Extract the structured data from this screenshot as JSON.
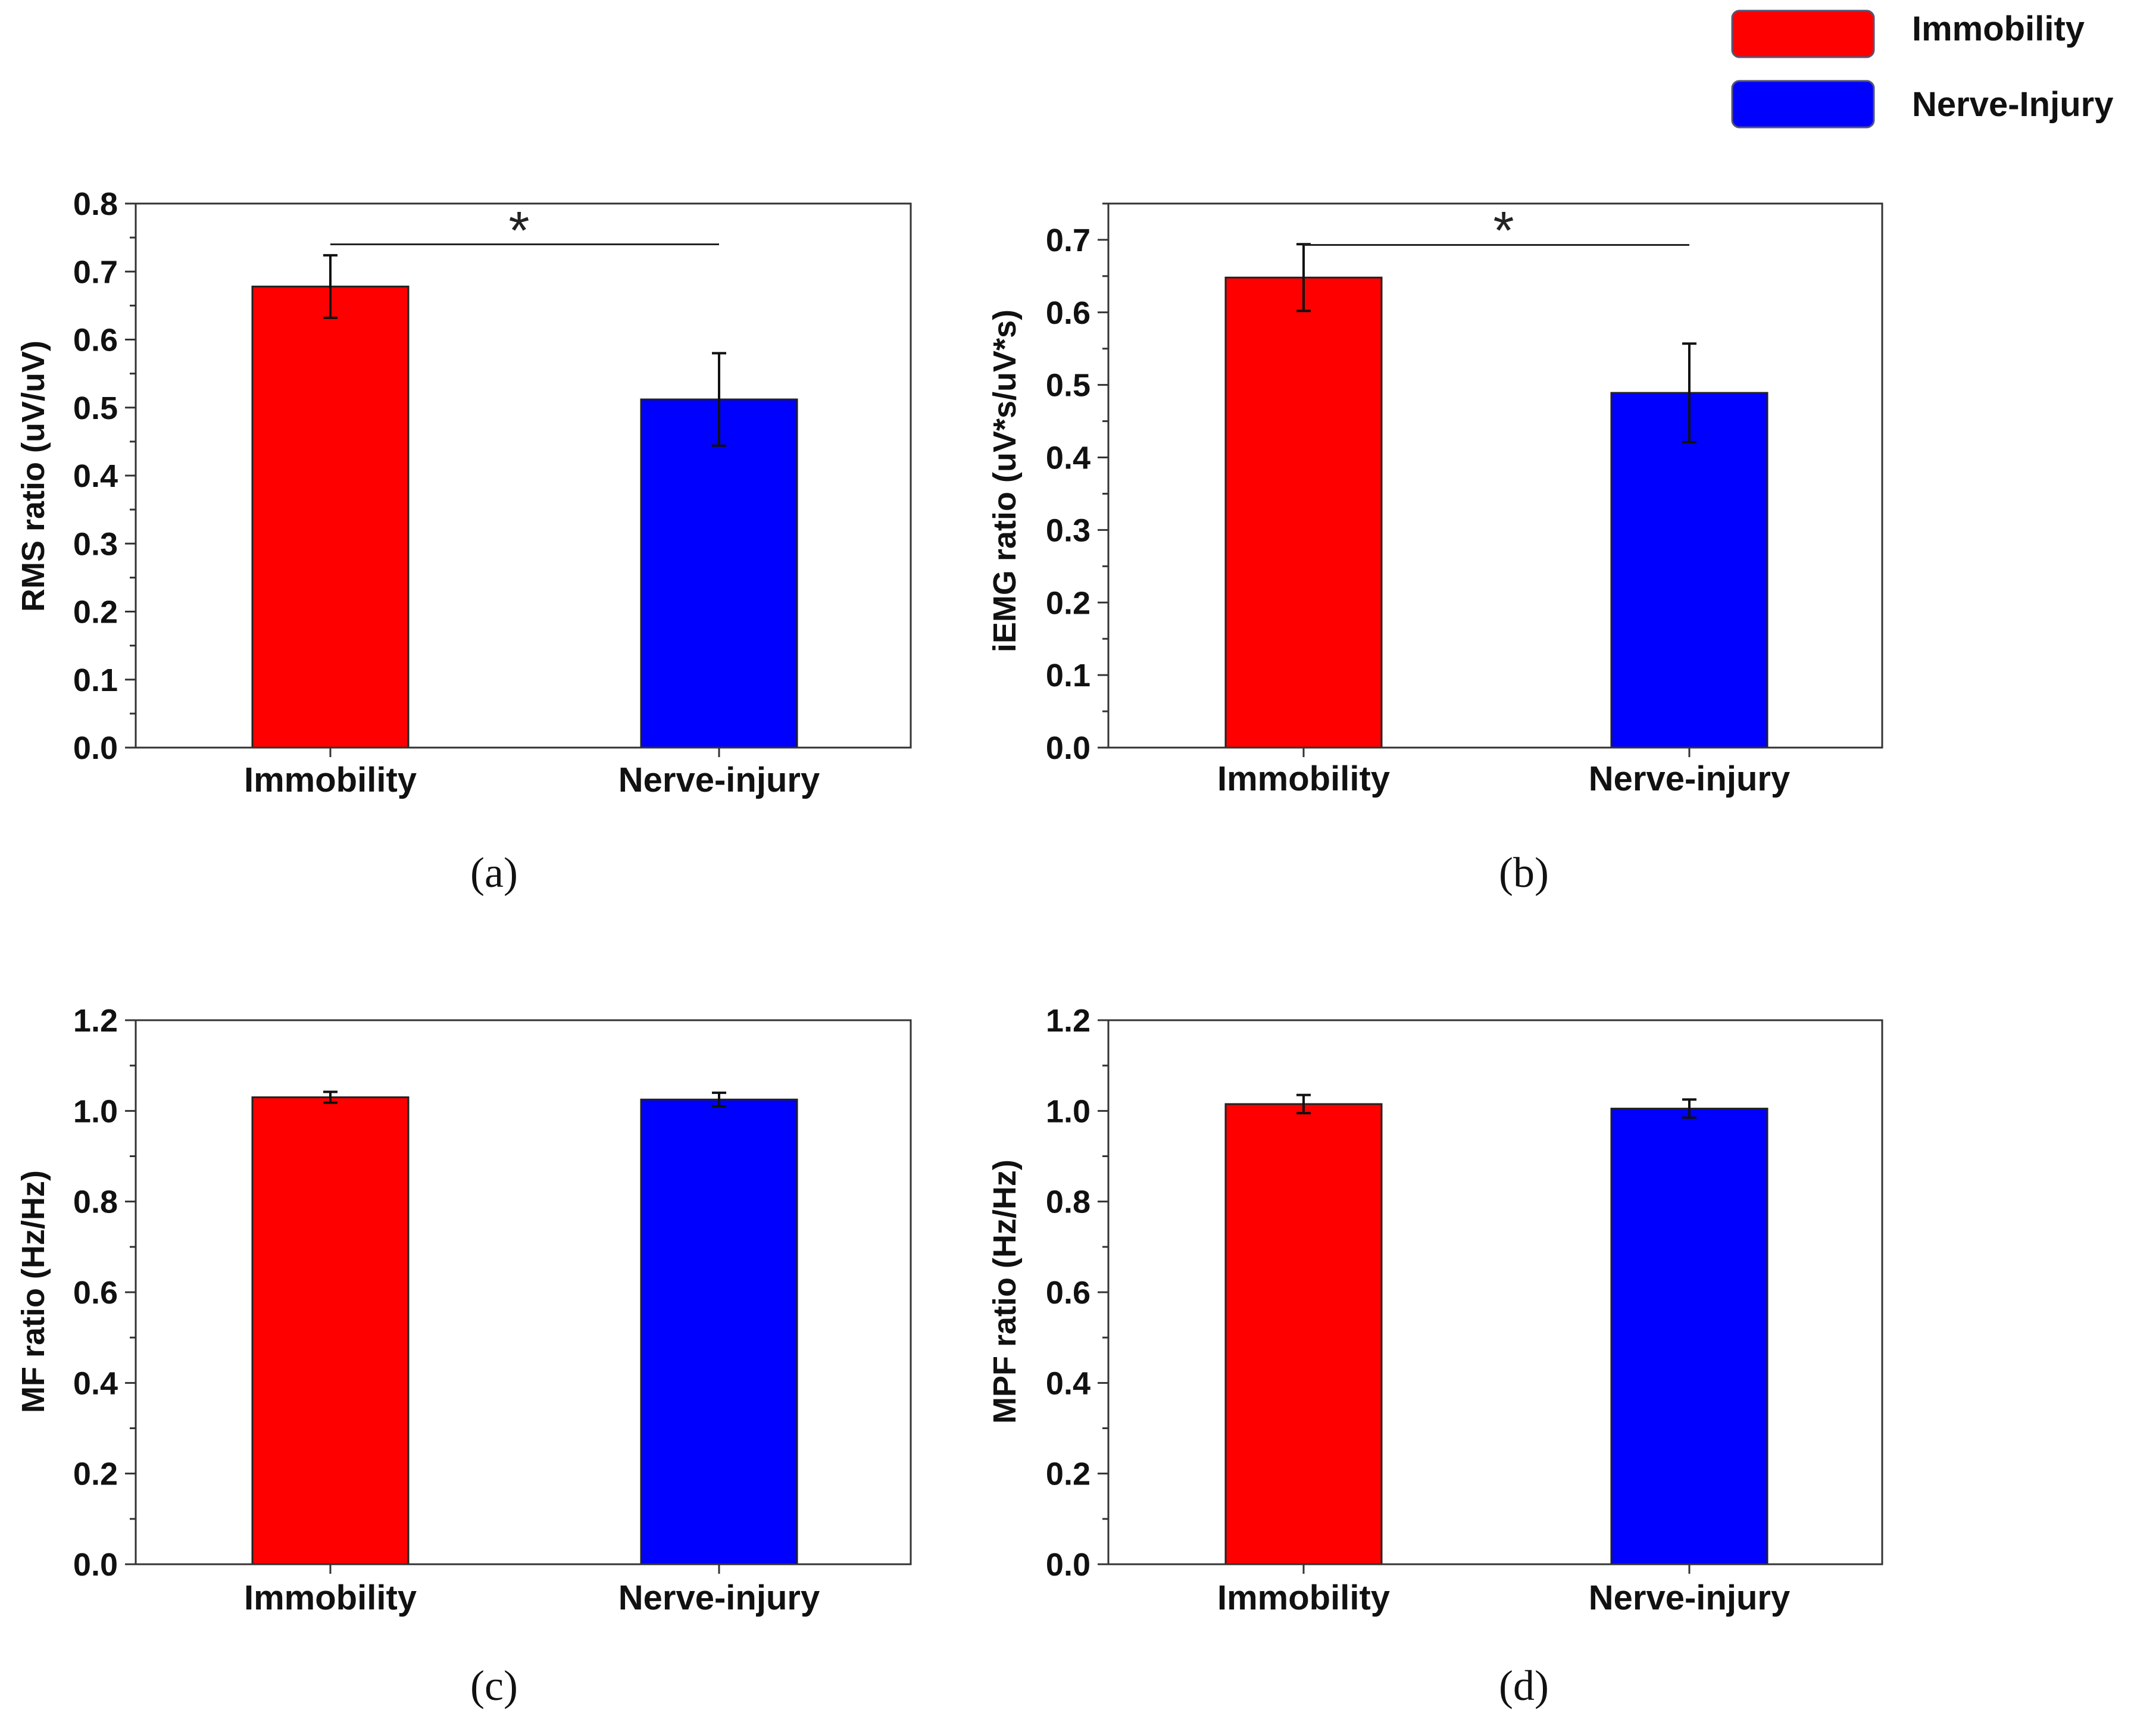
{
  "legend": {
    "entries": [
      {
        "label": "Immobility",
        "color": "#ff0000"
      },
      {
        "label": "Nerve-Injury",
        "color": "#0000ff"
      }
    ]
  },
  "chart_data": [
    {
      "type": "bar",
      "panel_label": "(a)",
      "categories": [
        "Immobility",
        "Nerve-injury"
      ],
      "values": [
        0.678,
        0.512
      ],
      "errors": [
        0.046,
        0.068
      ],
      "colors": [
        "#ff0000",
        "#0000ff"
      ],
      "ylabel": "RMS ratio (uV/uV)",
      "ylim": [
        0,
        0.8
      ],
      "yticks": [
        0.0,
        0.1,
        0.2,
        0.3,
        0.4,
        0.5,
        0.6,
        0.7,
        0.8
      ],
      "tick_decimals": 1,
      "minor_per_major": 1,
      "significance": {
        "label": "*",
        "y": 0.74
      }
    },
    {
      "type": "bar",
      "panel_label": "(b)",
      "categories": [
        "Immobility",
        "Nerve-injury"
      ],
      "values": [
        0.648,
        0.489
      ],
      "errors": [
        0.046,
        0.068
      ],
      "colors": [
        "#ff0000",
        "#0000ff"
      ],
      "ylabel": "iEMG ratio (uV*s/uV*s)",
      "ylim": [
        0,
        0.75
      ],
      "yticks": [
        0.0,
        0.1,
        0.2,
        0.3,
        0.4,
        0.5,
        0.6,
        0.7
      ],
      "tick_decimals": 1,
      "minor_per_major": 1,
      "significance": {
        "label": "*",
        "y": 0.693
      }
    },
    {
      "type": "bar",
      "panel_label": "(c)",
      "categories": [
        "Immobility",
        "Nerve-injury"
      ],
      "values": [
        1.03,
        1.025
      ],
      "errors": [
        0.012,
        0.015
      ],
      "colors": [
        "#ff0000",
        "#0000ff"
      ],
      "ylabel": "MF ratio (Hz/Hz)",
      "ylim": [
        0,
        1.2
      ],
      "yticks": [
        0.0,
        0.2,
        0.4,
        0.6,
        0.8,
        1.0,
        1.2
      ],
      "tick_decimals": 1,
      "minor_per_major": 1,
      "significance": null
    },
    {
      "type": "bar",
      "panel_label": "(d)",
      "categories": [
        "Immobility",
        "Nerve-injury"
      ],
      "values": [
        1.015,
        1.005
      ],
      "errors": [
        0.02,
        0.02
      ],
      "colors": [
        "#ff0000",
        "#0000ff"
      ],
      "ylabel": "MPF ratio (Hz/Hz)",
      "ylim": [
        0,
        1.2
      ],
      "yticks": [
        0.0,
        0.2,
        0.4,
        0.6,
        0.8,
        1.0,
        1.2
      ],
      "tick_decimals": 1,
      "minor_per_major": 1,
      "significance": null
    }
  ]
}
